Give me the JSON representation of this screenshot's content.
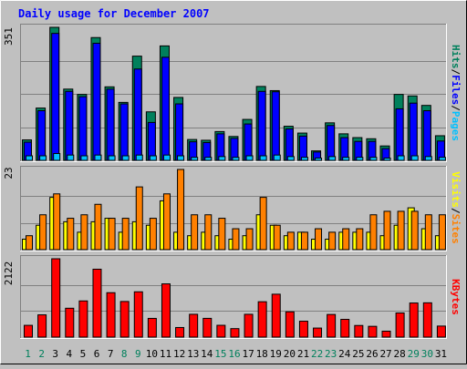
{
  "title": "Daily usage for December 2007",
  "colors": {
    "hits": "#00805c",
    "files": "#0000ff",
    "pages": "#00c0ff",
    "visits": "#ffff00",
    "sites": "#ff8000",
    "kbytes": "#ff0000",
    "title": "#0000ff",
    "weekend": "#00805c"
  },
  "chart_data": [
    {
      "type": "bar",
      "panel": "hits-files-pages",
      "ymax_label": "351",
      "ylim": [
        0,
        351
      ],
      "legend": [
        {
          "key": "pages",
          "text": "Pages"
        },
        {
          "key": "sep1",
          "text": "/"
        },
        {
          "key": "files",
          "text": "Files"
        },
        {
          "key": "sep2",
          "text": "/"
        },
        {
          "key": "hits",
          "text": "Hits"
        }
      ],
      "categories": [
        "1",
        "2",
        "3",
        "4",
        "5",
        "6",
        "7",
        "8",
        "9",
        "10",
        "11",
        "12",
        "13",
        "14",
        "15",
        "16",
        "17",
        "18",
        "19",
        "20",
        "21",
        "22",
        "23",
        "24",
        "25",
        "26",
        "27",
        "28",
        "29",
        "30",
        "31"
      ],
      "series": [
        {
          "key": "hits",
          "values": [
            54,
            138,
            351,
            188,
            174,
            324,
            194,
            153,
            275,
            128,
            302,
            166,
            55,
            53,
            76,
            63,
            108,
            195,
            184,
            90,
            72,
            25,
            99,
            70,
            60,
            57,
            38,
            174,
            170,
            145,
            65
          ]
        },
        {
          "key": "files",
          "values": [
            48,
            131,
            335,
            182,
            168,
            309,
            188,
            149,
            241,
            100,
            272,
            149,
            49,
            47,
            70,
            58,
            96,
            182,
            181,
            83,
            64,
            22,
            92,
            60,
            50,
            50,
            31,
            136,
            151,
            131,
            51
          ]
        },
        {
          "key": "pages",
          "values": [
            12,
            12,
            18,
            14,
            12,
            14,
            12,
            12,
            14,
            12,
            14,
            12,
            8,
            8,
            10,
            8,
            12,
            12,
            14,
            10,
            8,
            6,
            10,
            8,
            8,
            8,
            6,
            12,
            12,
            10,
            8
          ]
        }
      ]
    },
    {
      "type": "bar",
      "panel": "visits-sites",
      "ymax_label": "23",
      "ylim": [
        0,
        23
      ],
      "legend": [
        {
          "key": "sites",
          "text": "Sites"
        },
        {
          "key": "sep1",
          "text": "/"
        },
        {
          "key": "visits",
          "text": "Visits"
        }
      ],
      "categories": [
        "1",
        "2",
        "3",
        "4",
        "5",
        "6",
        "7",
        "8",
        "9",
        "10",
        "11",
        "12",
        "13",
        "14",
        "15",
        "16",
        "17",
        "18",
        "19",
        "20",
        "21",
        "22",
        "23",
        "24",
        "25",
        "26",
        "27",
        "28",
        "29",
        "30",
        "31"
      ],
      "series": [
        {
          "key": "visits",
          "values": [
            3,
            7,
            15,
            8,
            5,
            8,
            9,
            5,
            8,
            7,
            14,
            5,
            4,
            5,
            4,
            3,
            4,
            10,
            7,
            4,
            5,
            3,
            3,
            5,
            5,
            5,
            4,
            7,
            12,
            6,
            4
          ]
        },
        {
          "key": "sites",
          "values": [
            4,
            10,
            16,
            9,
            10,
            13,
            9,
            9,
            18,
            9,
            16,
            23,
            10,
            10,
            9,
            6,
            6,
            15,
            7,
            5,
            5,
            6,
            5,
            6,
            6,
            10,
            11,
            11,
            11,
            10,
            10
          ]
        }
      ]
    },
    {
      "type": "bar",
      "panel": "kbytes",
      "ymax_label": "2122",
      "ylim": [
        0,
        2122
      ],
      "legend": [
        {
          "key": "kbytes",
          "text": "KBytes"
        }
      ],
      "categories": [
        "1",
        "2",
        "3",
        "4",
        "5",
        "6",
        "7",
        "8",
        "9",
        "10",
        "11",
        "12",
        "13",
        "14",
        "15",
        "16",
        "17",
        "18",
        "19",
        "20",
        "21",
        "22",
        "23",
        "24",
        "25",
        "26",
        "27",
        "28",
        "29",
        "30",
        "31"
      ],
      "series": [
        {
          "key": "kbytes",
          "values": [
            319,
            603,
            2122,
            782,
            980,
            1839,
            1203,
            965,
            1227,
            507,
            1442,
            260,
            618,
            508,
            320,
            230,
            618,
            958,
            1162,
            685,
            431,
            245,
            613,
            481,
            315,
            292,
            161,
            654,
            924,
            929,
            299
          ]
        }
      ]
    }
  ],
  "x_labels": [
    {
      "text": "1",
      "weekend": true
    },
    {
      "text": "2",
      "weekend": true
    },
    {
      "text": "3",
      "weekend": false
    },
    {
      "text": "4",
      "weekend": false
    },
    {
      "text": "5",
      "weekend": false
    },
    {
      "text": "6",
      "weekend": false
    },
    {
      "text": "7",
      "weekend": false
    },
    {
      "text": "8",
      "weekend": true
    },
    {
      "text": "9",
      "weekend": true
    },
    {
      "text": "10",
      "weekend": false
    },
    {
      "text": "11",
      "weekend": false
    },
    {
      "text": "12",
      "weekend": false
    },
    {
      "text": "13",
      "weekend": false
    },
    {
      "text": "14",
      "weekend": false
    },
    {
      "text": "15",
      "weekend": true
    },
    {
      "text": "16",
      "weekend": true
    },
    {
      "text": "17",
      "weekend": false
    },
    {
      "text": "18",
      "weekend": false
    },
    {
      "text": "19",
      "weekend": false
    },
    {
      "text": "20",
      "weekend": false
    },
    {
      "text": "21",
      "weekend": false
    },
    {
      "text": "22",
      "weekend": true
    },
    {
      "text": "23",
      "weekend": true
    },
    {
      "text": "24",
      "weekend": false
    },
    {
      "text": "25",
      "weekend": false
    },
    {
      "text": "26",
      "weekend": false
    },
    {
      "text": "27",
      "weekend": false
    },
    {
      "text": "28",
      "weekend": false
    },
    {
      "text": "29",
      "weekend": true
    },
    {
      "text": "30",
      "weekend": true
    },
    {
      "text": "31",
      "weekend": false
    }
  ]
}
